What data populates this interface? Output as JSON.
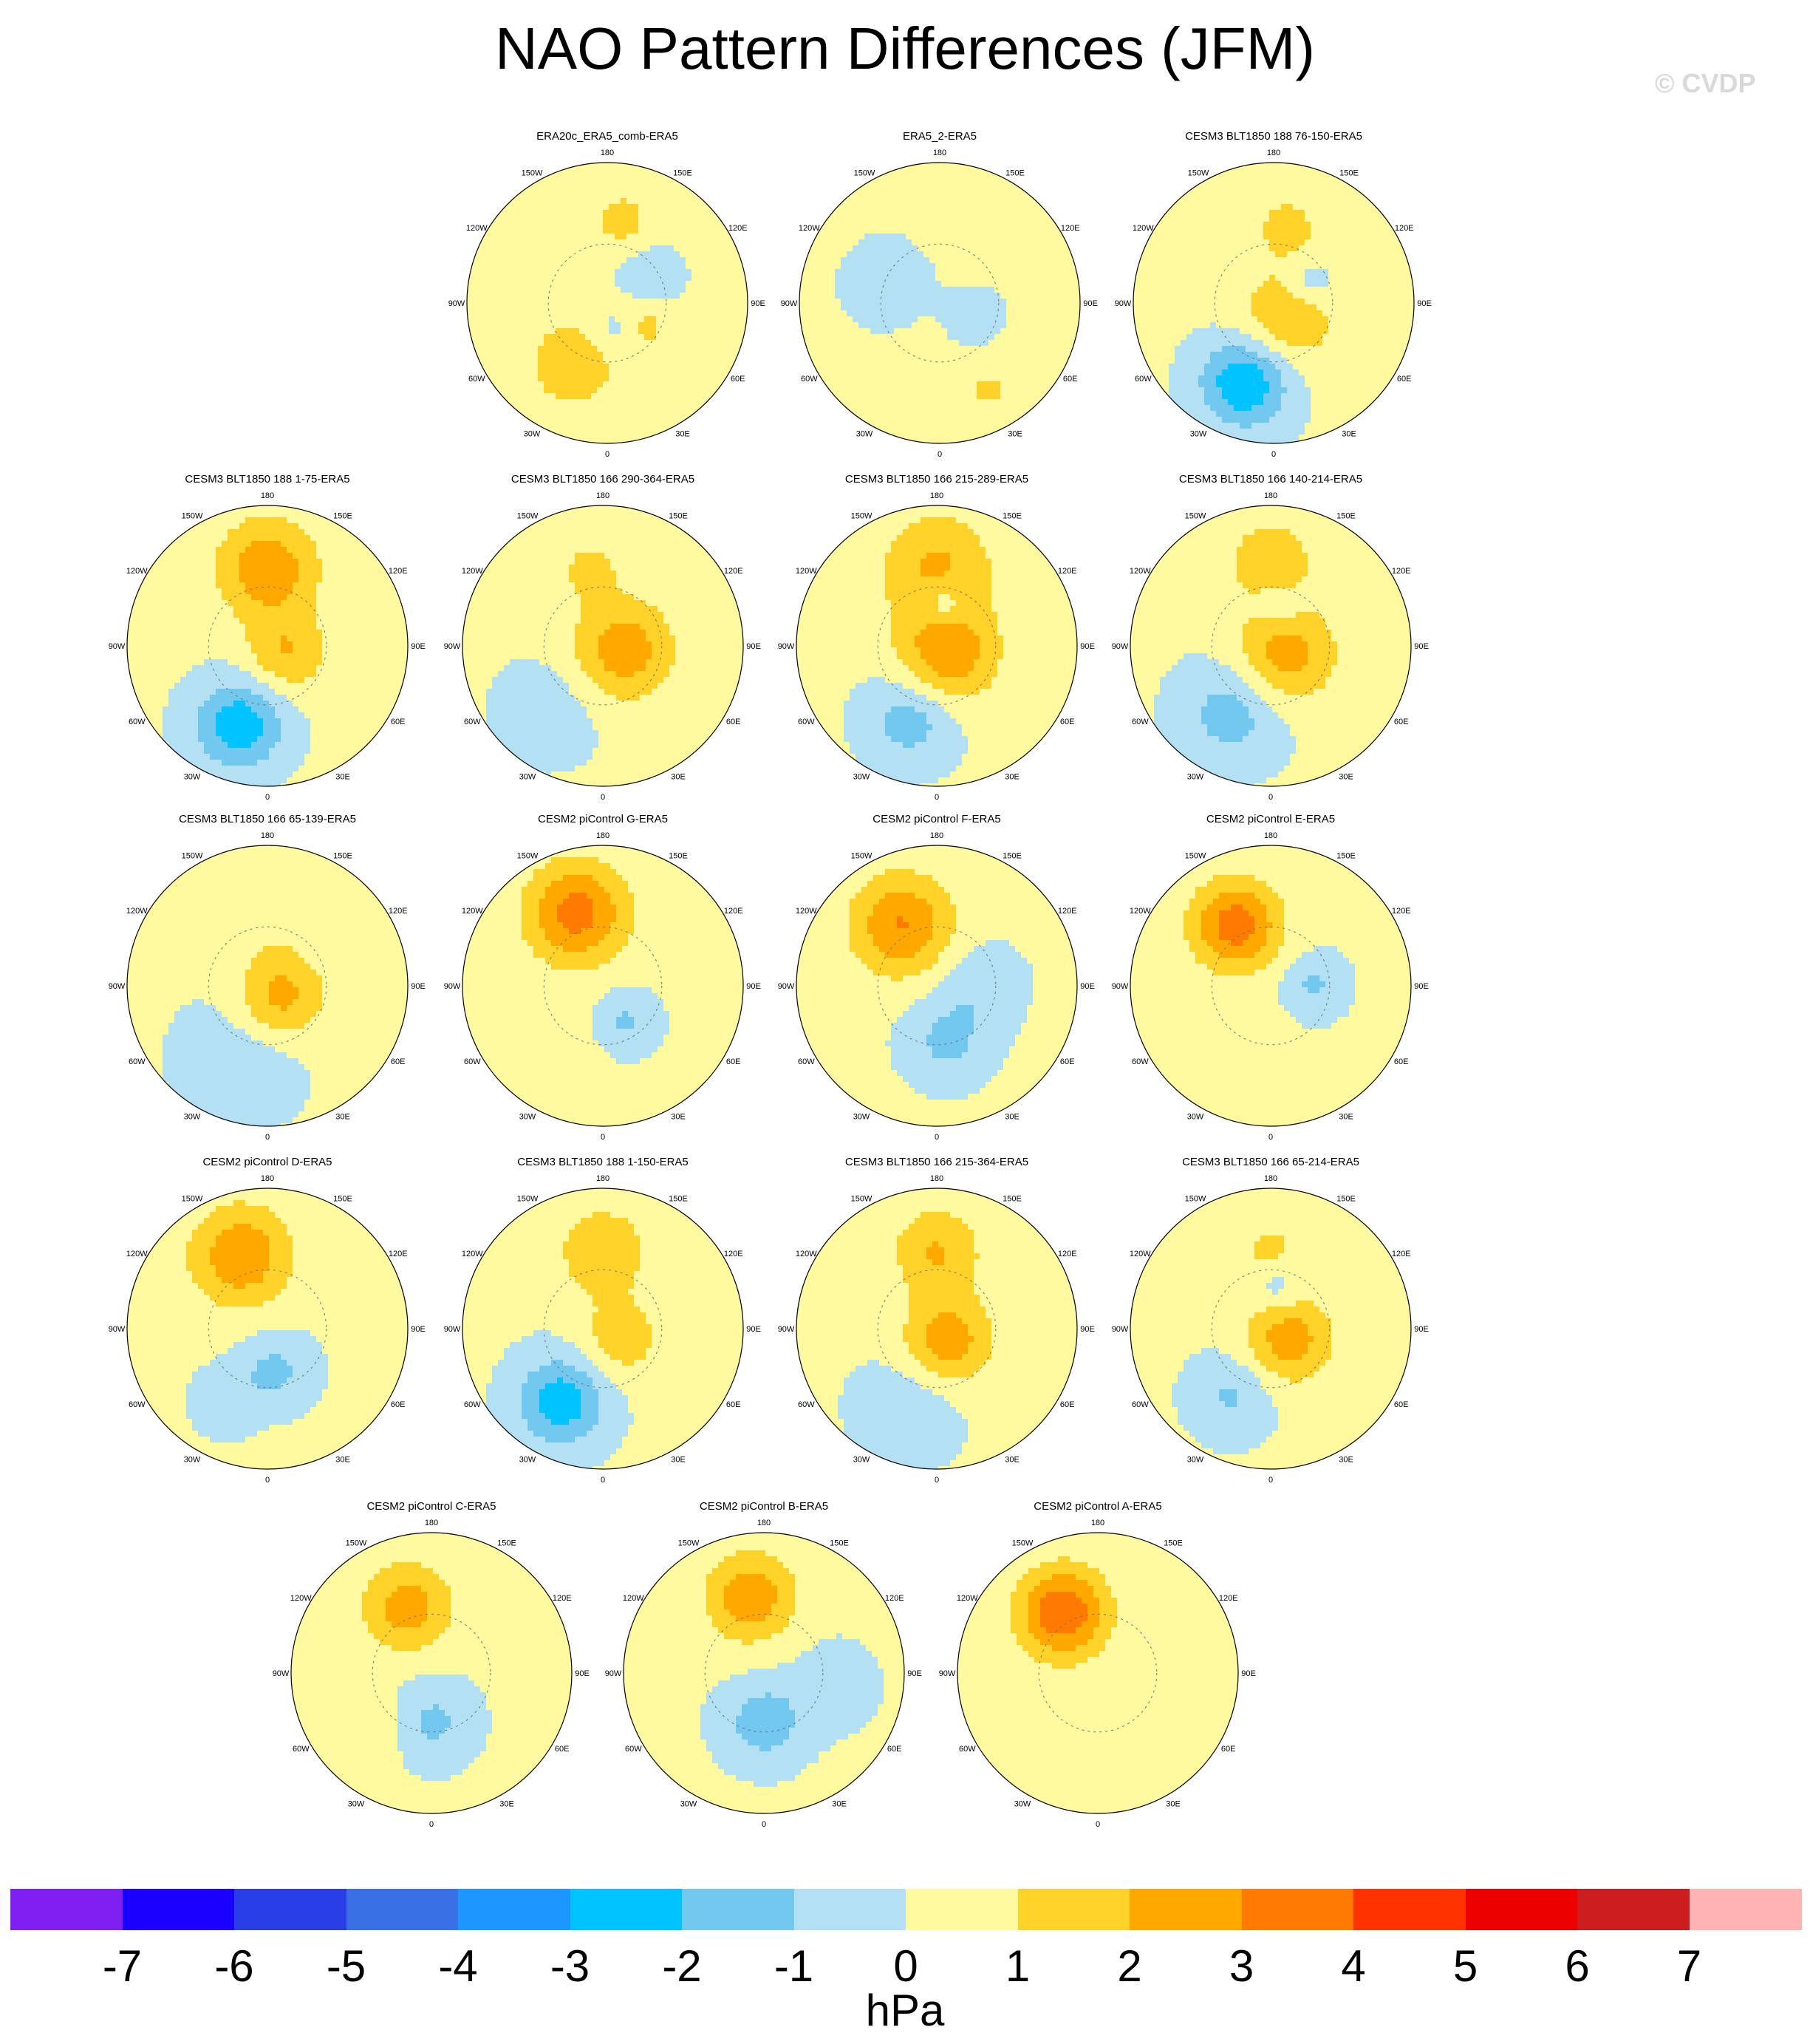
{
  "title": "NAO Pattern Differences (JFM)",
  "watermark": "© CVDP",
  "units": "hPa",
  "lon_labels": [
    "180",
    "150E",
    "120E",
    "90E",
    "60E",
    "30E",
    "0",
    "30W",
    "60W",
    "90W",
    "120W",
    "150W"
  ],
  "colorbar": {
    "colors": [
      "#8020f0",
      "#1a00ff",
      "#2a3ee6",
      "#3a70e6",
      "#1e96ff",
      "#00c3ff",
      "#73c8f0",
      "#b4e0f4",
      "#fff9a0",
      "#ffd22a",
      "#ffa800",
      "#ff7a00",
      "#ff3200",
      "#ec0000",
      "#cc1e1e",
      "#ffb4b4"
    ],
    "ticks": [
      "-7",
      "-6",
      "-5",
      "-4",
      "-3",
      "-2",
      "-1",
      "0",
      "1",
      "2",
      "3",
      "4",
      "5",
      "6",
      "7"
    ]
  },
  "panels": [
    {
      "title": "ERA20c_ERA5_comb-ERA5",
      "blobs": [
        {
          "lon": 330,
          "r": 0.5,
          "v": 1.5,
          "s": 0.25
        },
        {
          "lon": 170,
          "r": 0.6,
          "v": 1.3,
          "s": 0.15
        },
        {
          "lon": 60,
          "r": 0.3,
          "v": 1.2,
          "s": 0.15
        },
        {
          "lon": 120,
          "r": 0.35,
          "v": -1.2,
          "s": 0.14
        },
        {
          "lon": 20,
          "r": 0.2,
          "v": -1.1,
          "s": 0.12
        }
      ]
    },
    {
      "title": "ERA5_2-ERA5",
      "blobs": [
        {
          "lon": 30,
          "r": 0.7,
          "v": 0.9,
          "s": 0.3
        },
        {
          "lon": 160,
          "r": 0.75,
          "v": 0.8,
          "s": 0.2
        },
        {
          "lon": 60,
          "r": 0.3,
          "v": -1.1,
          "s": 0.15
        },
        {
          "lon": 250,
          "r": 0.4,
          "v": -0.8,
          "s": 0.2
        }
      ]
    },
    {
      "title": "CESM3 BLT1850 188 76-150-ERA5",
      "blobs": [
        {
          "lon": 340,
          "r": 0.6,
          "v": -3.2,
          "s": 0.22
        },
        {
          "lon": 40,
          "r": 0.15,
          "v": 1.8,
          "s": 0.25
        },
        {
          "lon": 170,
          "r": 0.55,
          "v": 1.2,
          "s": 0.18
        },
        {
          "lon": 120,
          "r": 0.3,
          "v": -1.2,
          "s": 0.12
        }
      ]
    },
    {
      "title": "CESM3 BLT1850 188 1-75-ERA5",
      "blobs": [
        {
          "lon": 180,
          "r": 0.55,
          "v": 2.6,
          "s": 0.25
        },
        {
          "lon": 340,
          "r": 0.6,
          "v": -2.9,
          "s": 0.22
        },
        {
          "lon": 70,
          "r": 0.15,
          "v": 1.8,
          "s": 0.2
        }
      ]
    },
    {
      "title": "CESM3 BLT1850 166 290-364-ERA5",
      "blobs": [
        {
          "lon": 80,
          "r": 0.15,
          "v": 2.5,
          "s": 0.25
        },
        {
          "lon": 190,
          "r": 0.55,
          "v": 1.2,
          "s": 0.15
        },
        {
          "lon": 320,
          "r": 0.6,
          "v": -0.8,
          "s": 0.25
        }
      ]
    },
    {
      "title": "CESM3 BLT1850 166 215-289-ERA5",
      "blobs": [
        {
          "lon": 180,
          "r": 0.55,
          "v": 2.0,
          "s": 0.28
        },
        {
          "lon": 50,
          "r": 0.1,
          "v": 2.6,
          "s": 0.25
        },
        {
          "lon": 340,
          "r": 0.55,
          "v": -1.8,
          "s": 0.22
        },
        {
          "lon": 170,
          "r": 0.3,
          "v": -1.5,
          "s": 0.12
        }
      ]
    },
    {
      "title": "CESM3 BLT1850 166 140-214-ERA5",
      "blobs": [
        {
          "lon": 180,
          "r": 0.6,
          "v": 1.8,
          "s": 0.2
        },
        {
          "lon": 60,
          "r": 0.12,
          "v": 2.4,
          "s": 0.25
        },
        {
          "lon": 330,
          "r": 0.55,
          "v": -1.7,
          "s": 0.25
        },
        {
          "lon": 170,
          "r": 0.3,
          "v": -1.1,
          "s": 0.12
        }
      ]
    },
    {
      "title": "CESM3 BLT1850 166 65-139-ERA5",
      "blobs": [
        {
          "lon": 50,
          "r": 0.12,
          "v": 2.3,
          "s": 0.22
        },
        {
          "lon": 340,
          "r": 0.55,
          "v": -0.9,
          "s": 0.3
        },
        {
          "lon": 180,
          "r": 0.55,
          "v": 0.8,
          "s": 0.2
        }
      ]
    },
    {
      "title": "CESM2 piControl G-ERA5",
      "blobs": [
        {
          "lon": 200,
          "r": 0.55,
          "v": 3.3,
          "s": 0.25
        },
        {
          "lon": 30,
          "r": 0.3,
          "v": -1.3,
          "s": 0.15
        },
        {
          "lon": 320,
          "r": 0.65,
          "v": 0.7,
          "s": 0.25
        }
      ]
    },
    {
      "title": "CESM2 piControl F-ERA5",
      "blobs": [
        {
          "lon": 210,
          "r": 0.5,
          "v": 2.9,
          "s": 0.25
        },
        {
          "lon": 10,
          "r": 0.4,
          "v": -1.4,
          "s": 0.2
        },
        {
          "lon": 90,
          "r": 0.3,
          "v": -1.0,
          "s": 0.2
        }
      ]
    },
    {
      "title": "CESM2 piControl E-ERA5",
      "blobs": [
        {
          "lon": 210,
          "r": 0.5,
          "v": 3.4,
          "s": 0.22
        },
        {
          "lon": 90,
          "r": 0.3,
          "v": -1.3,
          "s": 0.15
        },
        {
          "lon": 330,
          "r": 0.6,
          "v": 0.8,
          "s": 0.25
        }
      ]
    },
    {
      "title": "CESM2 piControl D-ERA5",
      "blobs": [
        {
          "lon": 200,
          "r": 0.55,
          "v": 2.7,
          "s": 0.25
        },
        {
          "lon": 10,
          "r": 0.3,
          "v": -1.4,
          "s": 0.18
        },
        {
          "lon": 330,
          "r": 0.6,
          "v": -1.0,
          "s": 0.15
        }
      ]
    },
    {
      "title": "CESM3 BLT1850 188 1-150-ERA5",
      "blobs": [
        {
          "lon": 180,
          "r": 0.55,
          "v": 1.8,
          "s": 0.22
        },
        {
          "lon": 330,
          "r": 0.6,
          "v": -2.8,
          "s": 0.22
        },
        {
          "lon": 60,
          "r": 0.15,
          "v": 1.5,
          "s": 0.2
        }
      ]
    },
    {
      "title": "CESM3 BLT1850 166 215-364-ERA5",
      "blobs": [
        {
          "lon": 180,
          "r": 0.55,
          "v": 1.9,
          "s": 0.22
        },
        {
          "lon": 40,
          "r": 0.12,
          "v": 2.5,
          "s": 0.22
        },
        {
          "lon": 340,
          "r": 0.6,
          "v": -1.0,
          "s": 0.25
        }
      ]
    },
    {
      "title": "CESM3 BLT1850 166 65-214-ERA5",
      "blobs": [
        {
          "lon": 60,
          "r": 0.15,
          "v": 2.4,
          "s": 0.22
        },
        {
          "lon": 330,
          "r": 0.55,
          "v": -1.3,
          "s": 0.2
        },
        {
          "lon": 180,
          "r": 0.55,
          "v": 1.1,
          "s": 0.18
        },
        {
          "lon": 170,
          "r": 0.3,
          "v": -1.2,
          "s": 0.12
        }
      ]
    },
    {
      "title": "CESM2 piControl C-ERA5",
      "blobs": [
        {
          "lon": 200,
          "r": 0.5,
          "v": 2.4,
          "s": 0.22
        },
        {
          "lon": 0,
          "r": 0.35,
          "v": -1.4,
          "s": 0.2
        },
        {
          "lon": 310,
          "r": 0.6,
          "v": 0.8,
          "s": 0.2
        }
      ]
    },
    {
      "title": "CESM2 piControl B-ERA5",
      "blobs": [
        {
          "lon": 190,
          "r": 0.55,
          "v": 2.6,
          "s": 0.22
        },
        {
          "lon": 0,
          "r": 0.35,
          "v": -1.8,
          "s": 0.2
        },
        {
          "lon": 80,
          "r": 0.5,
          "v": -0.8,
          "s": 0.2
        }
      ]
    },
    {
      "title": "CESM2 piControl A-ERA5",
      "blobs": [
        {
          "lon": 210,
          "r": 0.5,
          "v": 3.8,
          "s": 0.22
        },
        {
          "lon": 330,
          "r": 0.6,
          "v": 0.8,
          "s": 0.25
        },
        {
          "lon": 60,
          "r": 0.4,
          "v": 0.8,
          "s": 0.2
        }
      ]
    }
  ]
}
